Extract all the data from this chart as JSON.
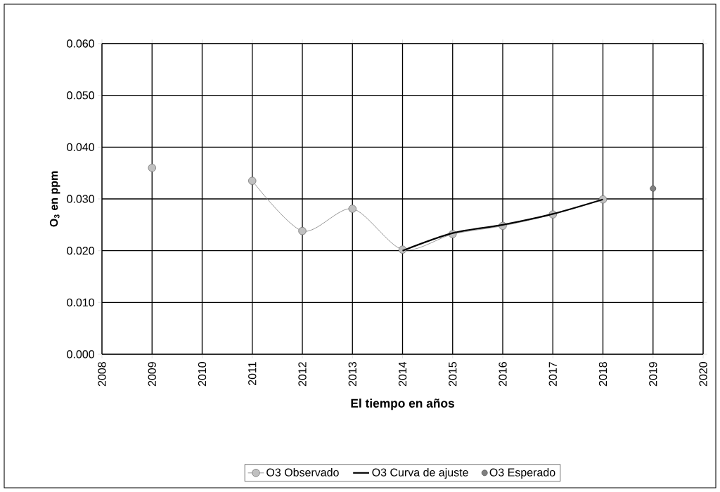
{
  "chart_data": {
    "type": "line",
    "xlabel": "El tiempo en años",
    "ylabel": "O$_{3}$ en ppm",
    "xlim": [
      2008,
      2020
    ],
    "xticks": [
      2008,
      2009,
      2010,
      2011,
      2012,
      2013,
      2014,
      2015,
      2016,
      2017,
      2018,
      2019,
      2020
    ],
    "ylim": [
      0,
      0.06
    ],
    "yticks": [
      {
        "value": 0,
        "label": "0.000"
      },
      {
        "value": 0.01,
        "label": "0.010"
      },
      {
        "value": 0.02,
        "label": "0.020"
      },
      {
        "value": 0.03,
        "label": "0.030"
      },
      {
        "value": 0.04,
        "label": "0.040"
      },
      {
        "value": 0.05,
        "label": "0.050"
      },
      {
        "value": 0.06,
        "label": "0.060"
      }
    ],
    "grid": true,
    "legend": "bottom",
    "series": [
      {
        "name": "O3 Observado",
        "marker": "circle",
        "color": "#c0c0c0",
        "x": [
          2009,
          2010,
          2011,
          2012,
          2013,
          2014,
          2015,
          2016,
          2017,
          2018
        ],
        "values": [
          0.036,
          null,
          0.0335,
          0.0238,
          0.0281,
          0.0202,
          0.0232,
          0.0248,
          0.027,
          0.0299
        ]
      },
      {
        "name": "O3 Curva de ajuste",
        "marker": "none",
        "color": "#000000",
        "x": [
          2014,
          2015,
          2016,
          2017,
          2018
        ],
        "values": [
          0.02,
          0.0234,
          0.025,
          0.0271,
          0.0299
        ]
      },
      {
        "name": "O3 Esperado",
        "type": "scatter",
        "marker": "circle",
        "color": "#808080",
        "x": [
          2019
        ],
        "values": [
          0.032
        ]
      }
    ]
  }
}
